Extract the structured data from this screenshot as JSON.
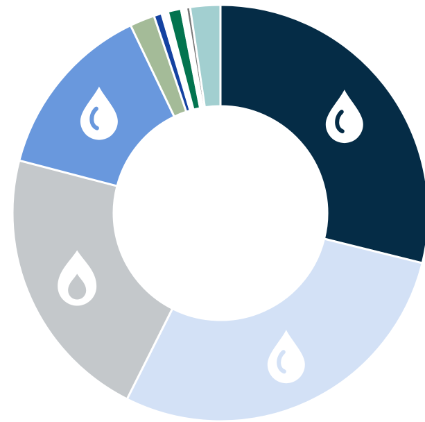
{
  "chart_data": {
    "type": "donut",
    "values": [
      28.4,
      28.1,
      21.3,
      13.6,
      1.9,
      0.6,
      0.5,
      1.0,
      0.4,
      0.3,
      2.3
    ],
    "colors": [
      "#052c46",
      "#d3e1f6",
      "#c4c8cb",
      "#6998dd",
      "#a4bb98",
      "#1442a1",
      "#ffffff",
      "#03744f",
      "#ffffff",
      "#777777",
      "#a2cfd0"
    ],
    "icons": [
      "oil-drop-icon",
      "oil-drop-icon",
      "gas-flame-icon",
      "oil-drop-icon",
      "",
      "",
      "",
      "",
      "",
      "",
      ""
    ],
    "start_angle_deg": 0,
    "direction": "clockwise",
    "legend": "none"
  }
}
